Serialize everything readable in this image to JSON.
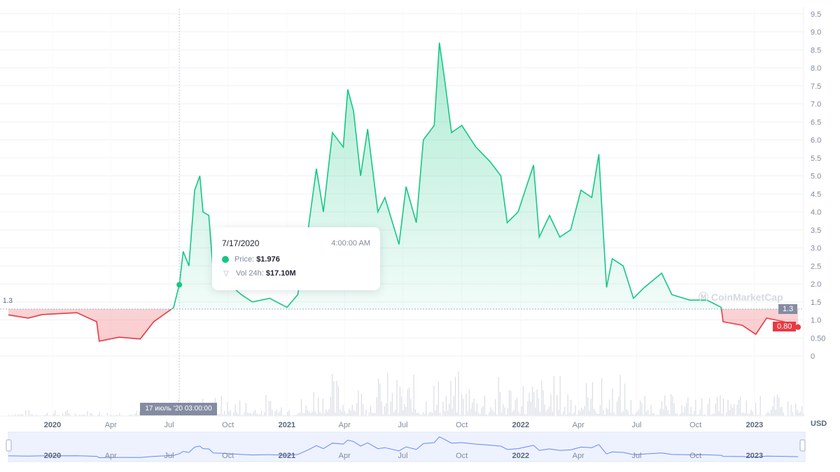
{
  "chart_data": {
    "type": "area",
    "currency": "USD",
    "yticks": [
      "9.5",
      "9.0",
      "8.5",
      "8.0",
      "7.5",
      "7.0",
      "6.5",
      "6.0",
      "5.5",
      "5.0",
      "4.5",
      "4.0",
      "3.5",
      "3.0",
      "2.5",
      "2.0",
      "1.5",
      "1.0",
      "0.50",
      "0"
    ],
    "ylim": [
      0,
      9.5
    ],
    "baseline": {
      "value": 1.3,
      "label": "1.3"
    },
    "current_price": {
      "value": 0.8,
      "label": "0.80"
    },
    "xticks": [
      {
        "date": "2020-01-01",
        "label": "2020",
        "bold": true
      },
      {
        "date": "2020-04-01",
        "label": "Apr"
      },
      {
        "date": "2020-07-01",
        "label": "Jul"
      },
      {
        "date": "2020-10-01",
        "label": "Oct"
      },
      {
        "date": "2021-01-01",
        "label": "2021",
        "bold": true
      },
      {
        "date": "2021-04-01",
        "label": "Apr"
      },
      {
        "date": "2021-07-01",
        "label": "Jul"
      },
      {
        "date": "2021-10-01",
        "label": "Oct"
      },
      {
        "date": "2022-01-01",
        "label": "2022",
        "bold": true
      },
      {
        "date": "2022-04-01",
        "label": "Apr"
      },
      {
        "date": "2022-07-01",
        "label": "Jul"
      },
      {
        "date": "2022-10-01",
        "label": "Oct"
      },
      {
        "date": "2023-01-01",
        "label": "2023",
        "bold": true
      }
    ],
    "series": [
      {
        "points": [
          [
            "2019-10-24",
            1.14
          ],
          [
            "2019-11-24",
            1.05
          ],
          [
            "2019-12-16",
            1.15
          ],
          [
            "2020-02-08",
            1.2
          ],
          [
            "2020-03-10",
            0.95
          ],
          [
            "2020-03-14",
            0.41
          ],
          [
            "2020-04-14",
            0.52
          ],
          [
            "2020-05-17",
            0.47
          ],
          [
            "2020-06-07",
            0.95
          ],
          [
            "2020-07-08",
            1.34
          ],
          [
            "2020-07-17",
            1.976
          ],
          [
            "2020-07-23",
            2.9
          ],
          [
            "2020-08-01",
            2.5
          ],
          [
            "2020-08-10",
            4.6
          ],
          [
            "2020-08-18",
            5.0
          ],
          [
            "2020-08-23",
            4.0
          ],
          [
            "2020-09-01",
            3.9
          ],
          [
            "2020-09-08",
            2.3
          ],
          [
            "2020-09-25",
            2.1
          ],
          [
            "2020-10-22",
            1.7
          ],
          [
            "2020-11-08",
            1.5
          ],
          [
            "2020-12-05",
            1.6
          ],
          [
            "2021-01-01",
            1.35
          ],
          [
            "2021-01-18",
            1.7
          ],
          [
            "2021-02-03",
            3.5
          ],
          [
            "2021-02-16",
            5.2
          ],
          [
            "2021-02-27",
            4.0
          ],
          [
            "2021-03-13",
            6.2
          ],
          [
            "2021-03-30",
            5.8
          ],
          [
            "2021-04-06",
            7.4
          ],
          [
            "2021-04-15",
            6.8
          ],
          [
            "2021-04-26",
            5.0
          ],
          [
            "2021-05-07",
            6.3
          ],
          [
            "2021-05-23",
            4.0
          ],
          [
            "2021-06-03",
            4.4
          ],
          [
            "2021-06-25",
            3.1
          ],
          [
            "2021-07-06",
            4.7
          ],
          [
            "2021-07-22",
            3.7
          ],
          [
            "2021-08-02",
            6.0
          ],
          [
            "2021-08-19",
            6.4
          ],
          [
            "2021-08-27",
            8.7
          ],
          [
            "2021-09-04",
            7.7
          ],
          [
            "2021-09-15",
            6.2
          ],
          [
            "2021-10-01",
            6.4
          ],
          [
            "2021-10-23",
            5.8
          ],
          [
            "2021-11-14",
            5.4
          ],
          [
            "2021-12-01",
            5.0
          ],
          [
            "2021-12-11",
            3.7
          ],
          [
            "2021-12-28",
            4.0
          ],
          [
            "2022-01-08",
            4.6
          ],
          [
            "2022-01-21",
            5.3
          ],
          [
            "2022-01-30",
            3.3
          ],
          [
            "2022-02-15",
            3.9
          ],
          [
            "2022-03-03",
            3.3
          ],
          [
            "2022-03-20",
            3.5
          ],
          [
            "2022-04-05",
            4.6
          ],
          [
            "2022-04-22",
            4.4
          ],
          [
            "2022-05-03",
            5.6
          ],
          [
            "2022-05-08",
            4.0
          ],
          [
            "2022-05-15",
            1.9
          ],
          [
            "2022-05-24",
            2.7
          ],
          [
            "2022-06-10",
            2.5
          ],
          [
            "2022-06-26",
            1.6
          ],
          [
            "2022-07-13",
            1.9
          ],
          [
            "2022-08-09",
            2.3
          ],
          [
            "2022-08-25",
            1.7
          ],
          [
            "2022-09-22",
            1.55
          ],
          [
            "2022-10-19",
            1.55
          ],
          [
            "2022-11-10",
            1.35
          ],
          [
            "2022-11-13",
            0.95
          ],
          [
            "2022-12-13",
            0.85
          ],
          [
            "2023-01-03",
            0.6
          ],
          [
            "2023-01-20",
            1.05
          ],
          [
            "2023-02-16",
            0.95
          ],
          [
            "2023-03-10",
            0.8
          ]
        ]
      }
    ],
    "colors": {
      "up": "#16c784",
      "down": "#ea3943",
      "navigator": "#6188ff"
    },
    "grid": true
  },
  "tooltip": {
    "date": "7/17/2020",
    "time": "4:00:00 AM",
    "price_label": "Price:",
    "price": "$1.976",
    "vol_label": "Vol 24h:",
    "vol": "$17.10M"
  },
  "crosshair_label": "17 июль '20   03:00:00",
  "watermark": "CoinMarketCap",
  "currency_label": "USD",
  "left_baseline_label": "1.3"
}
